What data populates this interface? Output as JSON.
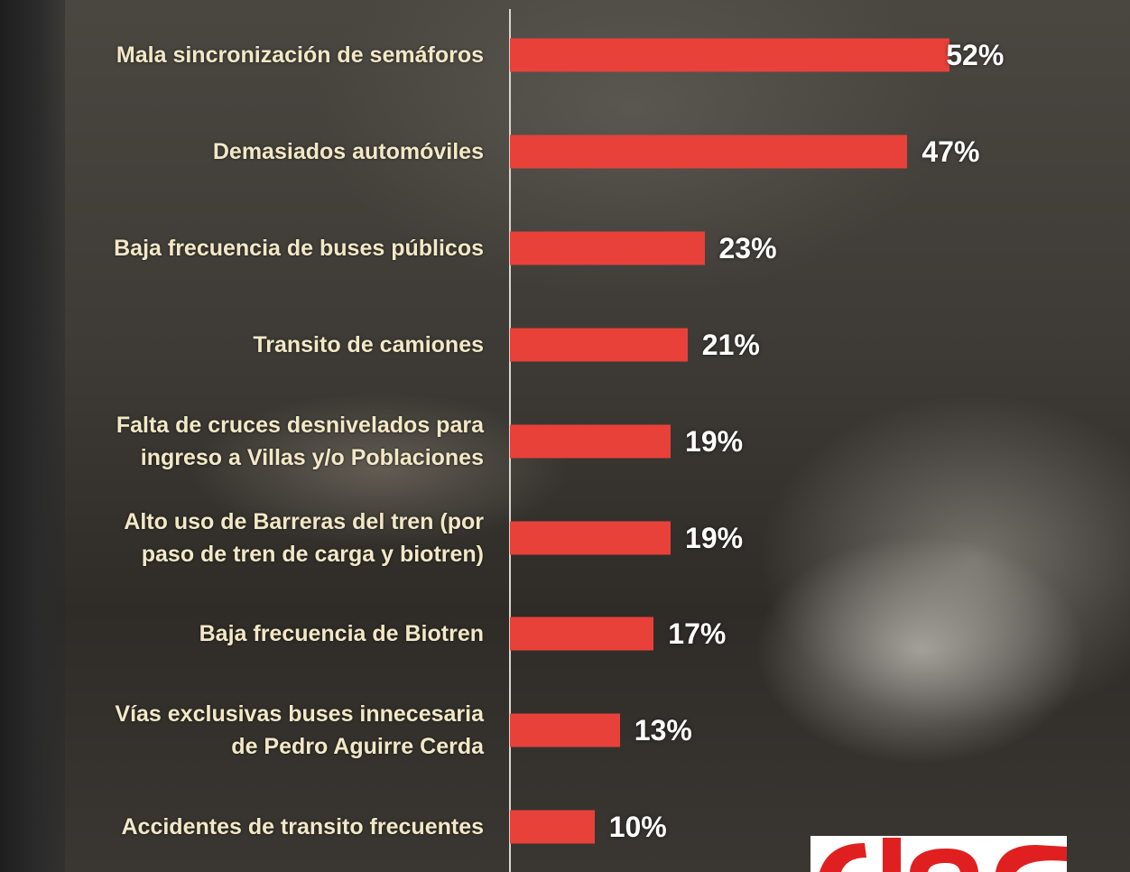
{
  "chart_data": {
    "type": "bar",
    "orientation": "horizontal",
    "color": "#e8413a",
    "categories": [
      "Mala sincronización de semáforos",
      "Demasiados automóviles",
      "Baja frecuencia de buses públicos",
      "Transito de camiones",
      "Falta de cruces desnivelados para\ningreso a Villas y/o Poblaciones",
      "Alto uso de Barreras del tren (por\npaso de tren de carga y biotren)",
      "Baja frecuencia de Biotren",
      "Vías exclusivas buses innecesaria\nde Pedro Aguirre Cerda",
      "Accidentes de transito frecuentes"
    ],
    "values": [
      52,
      47,
      23,
      21,
      19,
      19,
      17,
      13,
      10
    ],
    "value_labels": [
      "52%",
      "47%",
      "23%",
      "21%",
      "19%",
      "19%",
      "17%",
      "13%",
      "10%"
    ]
  }
}
